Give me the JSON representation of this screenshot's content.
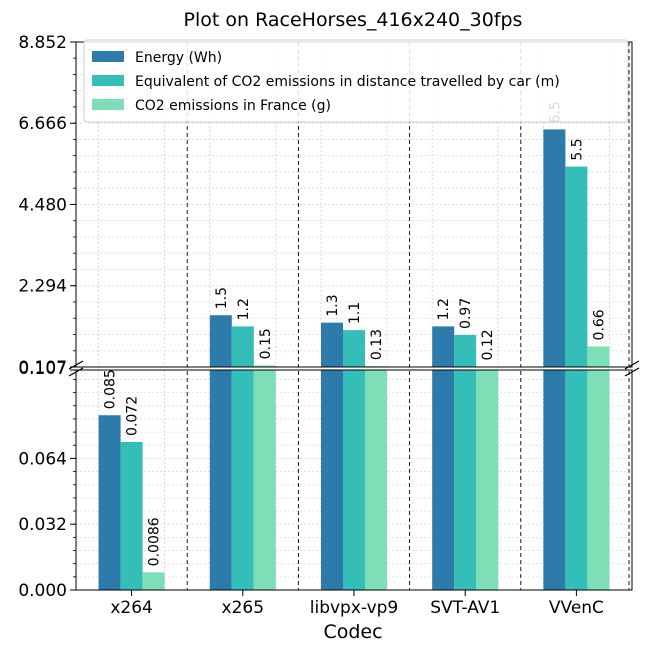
{
  "chart_data": {
    "type": "bar",
    "title": "Plot on RaceHorses_416x240_30fps",
    "xlabel": "Codec",
    "ylabel": "",
    "categories": [
      "x264",
      "x265",
      "libvpx-vp9",
      "SVT-AV1",
      "VVenC"
    ],
    "series": [
      {
        "name": "Energy (Wh)",
        "color": "#2c7bab",
        "values": [
          0.085,
          1.5,
          1.3,
          1.2,
          6.5
        ],
        "labels": [
          "0.085",
          "1.5",
          "1.3",
          "1.2",
          "6.5"
        ]
      },
      {
        "name": "Equivalent of CO2 emissions in distance travelled by car (m)",
        "color": "#35bdb8",
        "values": [
          0.072,
          1.2,
          1.1,
          0.97,
          5.5
        ],
        "labels": [
          "0.072",
          "1.2",
          "1.1",
          "0.97",
          "5.5"
        ]
      },
      {
        "name": "CO2 emissions in France (g)",
        "color": "#7ddfb5",
        "values": [
          0.0086,
          0.15,
          0.13,
          0.12,
          0.66
        ],
        "labels": [
          "0.0086",
          "0.15",
          "0.13",
          "0.12",
          "0.66"
        ]
      }
    ],
    "axis_break": true,
    "lower_axis": {
      "ylim": [
        0,
        0.107
      ],
      "ticks": [
        "0.000",
        "0.032",
        "0.064"
      ]
    },
    "upper_axis": {
      "ylim": [
        0.107,
        8.852
      ],
      "ticks": [
        "0.107",
        "2.294",
        "4.480",
        "6.666",
        "8.852"
      ]
    },
    "grid": true,
    "legend_position": "top"
  }
}
